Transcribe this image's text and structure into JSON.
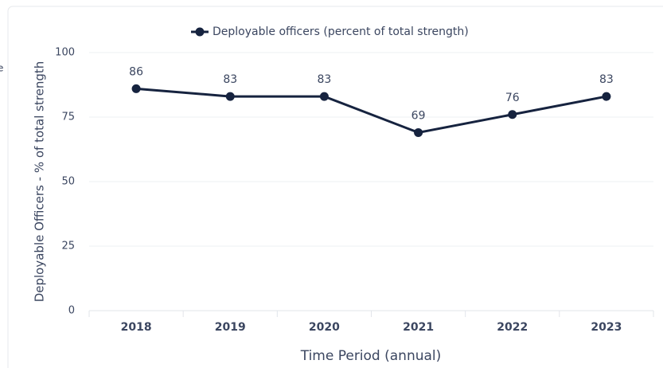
{
  "clipped_text": "e",
  "chart_data": {
    "type": "line",
    "categories": [
      "2018",
      "2019",
      "2020",
      "2021",
      "2022",
      "2023"
    ],
    "series": [
      {
        "name": "Deployable officers (percent of total strength)",
        "color": "#16233f",
        "values": [
          86,
          83,
          83,
          69,
          76,
          83
        ]
      }
    ],
    "ylim": [
      0,
      100
    ],
    "yticks": [
      0,
      25,
      50,
      75,
      100
    ],
    "grid": true,
    "y_label": "Deployable Officers - % of total strength",
    "x_label": "Time Period (annual)",
    "legend": "top"
  }
}
